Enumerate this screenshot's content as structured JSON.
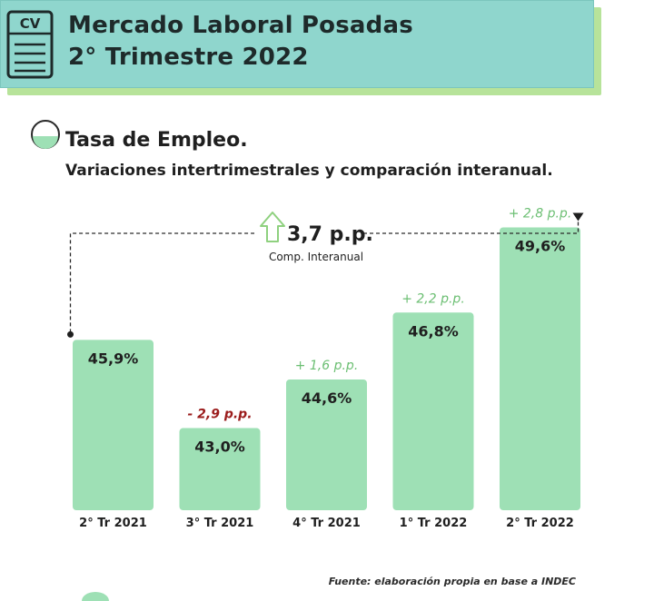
{
  "header": {
    "icon_label": "CV",
    "title_line1": "Mercado Laboral Posadas",
    "title_line2": "2° Trimestre 2022"
  },
  "section": {
    "title": "Tasa de Empleo.",
    "subtitle": "Variaciones intertrimestrales y comparación interanual."
  },
  "chart_data": {
    "type": "bar",
    "categories": [
      "2° Tr 2021",
      "3° Tr 2021",
      "4° Tr 2021",
      "1° Tr 2022",
      "2° Tr 2022"
    ],
    "values": [
      45.9,
      43.0,
      44.6,
      46.8,
      49.6
    ],
    "value_labels": [
      "45,9%",
      "43,0%",
      "44,6%",
      "46,8%",
      "49,6%"
    ],
    "change_labels": [
      "",
      "- 2,9 p.p.",
      "+ 1,6 p.p.",
      "+ 2,2 p.p.",
      "+ 2,8 p.p."
    ],
    "change_directions": [
      "",
      "down",
      "up",
      "up",
      "up"
    ],
    "interannual": {
      "label": "3,7 p.p.",
      "caption": "Comp. Interanual",
      "direction": "up"
    },
    "colors": {
      "bar": "#9ee0b5",
      "up": "#6cbf73",
      "down": "#9b1c1c",
      "arrow": "#8fd17f"
    }
  },
  "footer": {
    "source": "Fuente: elaboración propia en base a INDEC"
  }
}
